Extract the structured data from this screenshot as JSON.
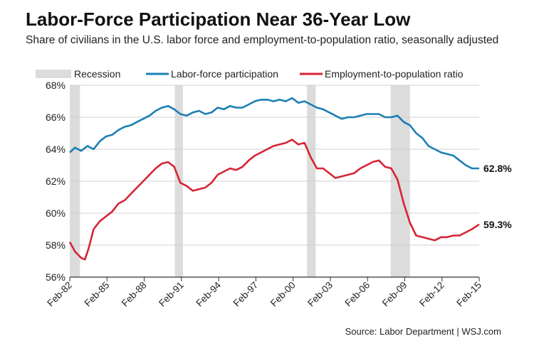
{
  "header": {
    "title": "Labor-Force Participation Near 36-Year Low",
    "subtitle": "Share of civilians in the U.S. labor force and employment-to-population ratio, seasonally adjusted"
  },
  "footer": {
    "source": "Source: Labor Department  |  WSJ.com"
  },
  "colors": {
    "lfp": "#1a7fb4",
    "epop": "#d62435",
    "recession": "#dcdcdc",
    "grid": "#d0d0d0",
    "text": "#222222"
  },
  "chart_data": {
    "type": "line",
    "title": "Labor-Force Participation Near 36-Year Low",
    "xlabel": "",
    "ylabel": "",
    "xlim": [
      1982.08,
      2015.08
    ],
    "ylim": [
      56,
      68
    ],
    "yticks": [
      56,
      58,
      60,
      62,
      64,
      66,
      68
    ],
    "ytick_labels": [
      "56%",
      "58%",
      "60%",
      "62%",
      "64%",
      "66%",
      "68%"
    ],
    "xticks": [
      1982,
      1985,
      1988,
      1991,
      1994,
      1997,
      2000,
      2003,
      2006,
      2009,
      2012,
      2015
    ],
    "xtick_labels": [
      "Feb-82",
      "Feb-85",
      "Feb-88",
      "Feb-91",
      "Feb-94",
      "Feb-97",
      "Feb-00",
      "Feb-03",
      "Feb-06",
      "Feb-09",
      "Feb-12",
      "Feb-15"
    ],
    "legend": [
      "Recession",
      "Labor-force participation",
      "Employment-to-population ratio"
    ],
    "recessions": [
      [
        1982.08,
        1982.9
      ],
      [
        1990.55,
        1991.2
      ],
      [
        2001.2,
        2001.9
      ],
      [
        2007.95,
        2009.5
      ]
    ],
    "series": [
      {
        "name": "Labor-force participation",
        "end_label": "62.8%",
        "x": [
          1982.08,
          1982.5,
          1983.0,
          1983.5,
          1984.0,
          1984.5,
          1985.0,
          1985.5,
          1986.0,
          1986.5,
          1987.0,
          1987.5,
          1988.0,
          1988.5,
          1989.0,
          1989.5,
          1990.0,
          1990.5,
          1991.0,
          1991.5,
          1992.0,
          1992.5,
          1993.0,
          1993.5,
          1994.0,
          1994.5,
          1995.0,
          1995.5,
          1996.0,
          1996.5,
          1997.0,
          1997.5,
          1998.0,
          1998.5,
          1999.0,
          1999.5,
          2000.0,
          2000.5,
          2001.0,
          2001.5,
          2002.0,
          2002.5,
          2003.0,
          2003.5,
          2004.0,
          2004.5,
          2005.0,
          2005.5,
          2006.0,
          2006.5,
          2007.0,
          2007.5,
          2008.0,
          2008.5,
          2009.0,
          2009.5,
          2010.0,
          2010.5,
          2011.0,
          2011.5,
          2012.0,
          2012.5,
          2013.0,
          2013.5,
          2014.0,
          2014.5,
          2015.08
        ],
        "values": [
          63.8,
          64.1,
          63.9,
          64.2,
          64.0,
          64.5,
          64.8,
          64.9,
          65.2,
          65.4,
          65.5,
          65.7,
          65.9,
          66.1,
          66.4,
          66.6,
          66.7,
          66.5,
          66.2,
          66.1,
          66.3,
          66.4,
          66.2,
          66.3,
          66.6,
          66.5,
          66.7,
          66.6,
          66.6,
          66.8,
          67.0,
          67.1,
          67.1,
          67.0,
          67.1,
          67.0,
          67.2,
          66.9,
          67.0,
          66.8,
          66.6,
          66.5,
          66.3,
          66.1,
          65.9,
          66.0,
          66.0,
          66.1,
          66.2,
          66.2,
          66.2,
          66.0,
          66.0,
          66.1,
          65.7,
          65.5,
          65.0,
          64.7,
          64.2,
          64.0,
          63.8,
          63.7,
          63.6,
          63.3,
          63.0,
          62.8,
          62.8
        ]
      },
      {
        "name": "Employment-to-population ratio",
        "end_label": "59.3%",
        "x": [
          1982.08,
          1982.5,
          1983.0,
          1983.3,
          1983.6,
          1984.0,
          1984.5,
          1985.0,
          1985.5,
          1986.0,
          1986.5,
          1987.0,
          1987.5,
          1988.0,
          1988.5,
          1989.0,
          1989.5,
          1990.0,
          1990.5,
          1991.0,
          1991.5,
          1992.0,
          1992.5,
          1993.0,
          1993.5,
          1994.0,
          1994.5,
          1995.0,
          1995.5,
          1996.0,
          1996.5,
          1997.0,
          1997.5,
          1998.0,
          1998.5,
          1999.0,
          1999.5,
          2000.0,
          2000.5,
          2001.0,
          2001.5,
          2002.0,
          2002.5,
          2003.0,
          2003.5,
          2004.0,
          2004.5,
          2005.0,
          2005.5,
          2006.0,
          2006.5,
          2007.0,
          2007.5,
          2008.0,
          2008.5,
          2009.0,
          2009.5,
          2010.0,
          2010.5,
          2011.0,
          2011.5,
          2012.0,
          2012.5,
          2013.0,
          2013.5,
          2014.0,
          2014.5,
          2015.08
        ],
        "values": [
          58.2,
          57.6,
          57.2,
          57.1,
          57.8,
          59.0,
          59.5,
          59.8,
          60.1,
          60.6,
          60.8,
          61.2,
          61.6,
          62.0,
          62.4,
          62.8,
          63.1,
          63.2,
          62.9,
          61.9,
          61.7,
          61.4,
          61.5,
          61.6,
          61.9,
          62.4,
          62.6,
          62.8,
          62.7,
          62.9,
          63.3,
          63.6,
          63.8,
          64.0,
          64.2,
          64.3,
          64.4,
          64.6,
          64.3,
          64.4,
          63.5,
          62.8,
          62.8,
          62.5,
          62.2,
          62.3,
          62.4,
          62.5,
          62.8,
          63.0,
          63.2,
          63.3,
          62.9,
          62.8,
          62.1,
          60.6,
          59.4,
          58.6,
          58.5,
          58.4,
          58.3,
          58.5,
          58.5,
          58.6,
          58.6,
          58.8,
          59.0,
          59.3
        ]
      }
    ]
  }
}
